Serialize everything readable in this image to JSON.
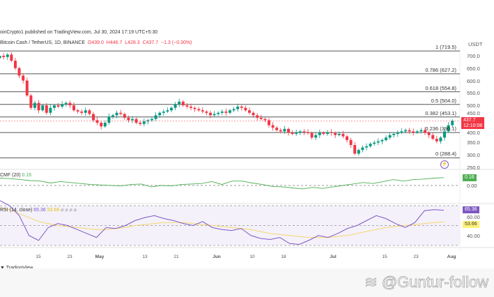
{
  "header": {
    "published": "oinCrypto1 published on TradingView.com, Jul 30, 2024 17:19 UTC+5:30",
    "symbol": "Bitcoin Cash / TetherUS, 1D, BINANCE",
    "open": "O439.0",
    "high": "H446.7",
    "low": "L428.3",
    "close": "C437.7",
    "change": "−1.3 (−0.30%)"
  },
  "price_axis": {
    "currency": "USDT",
    "ticks": [
      "700.0",
      "650.0",
      "600.0",
      "550.0",
      "500.0",
      "450.0",
      "400.0",
      "350.0",
      "300.0",
      "250.0"
    ],
    "last_price": "437.7",
    "countdown": "12:10:08"
  },
  "cmf": {
    "label": "CMF (20)",
    "value": "0.16",
    "zero": "0.00"
  },
  "rsi": {
    "label": "RSI (14, close)",
    "value": "65.36",
    "ma_value": "53.66",
    "tick_60": "60.00",
    "tick_40": "40.00"
  },
  "x_axis": [
    "15",
    "23",
    "May",
    "13",
    "21",
    "Jun",
    "10",
    "18",
    "Jul",
    "15",
    "23",
    "Aug"
  ],
  "footer": {
    "brand": "TradingView",
    "watermark": "@Guntur-follow"
  },
  "colors": {
    "up": "#089981",
    "down": "#f23645",
    "cmf": "#4caf50",
    "rsi": "#7e57c2",
    "rsi_ma": "#f5d76e"
  },
  "chart_data": {
    "type": "candlestick",
    "title": "Bitcoin Cash / TetherUS, 1D, BINANCE",
    "x_start": "2024-04-04",
    "x_end": "2024-07-30",
    "ylim": [
      250,
      720
    ],
    "closes": [
      690,
      700,
      695,
      705,
      680,
      650,
      620,
      600,
      540,
      490,
      510,
      480,
      500,
      470,
      490,
      500,
      495,
      505,
      510,
      500,
      480,
      475,
      470,
      480,
      465,
      440,
      430,
      415,
      430,
      455,
      460,
      470,
      465,
      450,
      440,
      445,
      430,
      425,
      435,
      440,
      445,
      460,
      470,
      475,
      480,
      490,
      505,
      515,
      500,
      495,
      490,
      485,
      480,
      475,
      470,
      460,
      465,
      470,
      475,
      470,
      480,
      485,
      495,
      490,
      480,
      470,
      460,
      450,
      445,
      440,
      420,
      410,
      400,
      395,
      405,
      390,
      385,
      390,
      395,
      392,
      388,
      370,
      380,
      390,
      385,
      392,
      388,
      380,
      385,
      375,
      360,
      340,
      305,
      320,
      330,
      335,
      345,
      350,
      355,
      360,
      370,
      380,
      385,
      390,
      395,
      400,
      395,
      390,
      395,
      400,
      390,
      380,
      365,
      355,
      370,
      395,
      420,
      437.7
    ],
    "fib_levels": [
      {
        "ratio": "1",
        "price": 719.5,
        "label": "1 (719.5)"
      },
      {
        "ratio": "0.786",
        "price": 627.2,
        "label": "0.786 (627.2)"
      },
      {
        "ratio": "0.618",
        "price": 554.8,
        "label": "0.618 (554.8)"
      },
      {
        "ratio": "0.5",
        "price": 504.0,
        "label": "0.5 (504.0)"
      },
      {
        "ratio": "0.382",
        "price": 453.1,
        "label": "0.382 (453.1)"
      },
      {
        "ratio": "0.236",
        "price": 390.1,
        "label": "0.236 (390.1)"
      },
      {
        "ratio": "0",
        "price": 288.4,
        "label": "0 (288.4)"
      }
    ],
    "cmf_series": [
      0.15,
      0.14,
      0.12,
      0.1,
      0.09,
      0.05,
      0.08,
      0.06,
      0.04,
      0.02,
      0.01,
      0.0,
      -0.01,
      0.02,
      0.03,
      -0.03,
      0.0,
      -0.01,
      0.02,
      0.03,
      0.04,
      0.08,
      0.02,
      0.09,
      0.09,
      0.05,
      0.02,
      -0.02,
      -0.03,
      -0.05,
      -0.07,
      -0.04,
      -0.06,
      -0.03,
      0.0,
      0.03,
      0.06,
      0.04,
      0.08,
      0.12,
      0.09,
      0.12,
      0.13,
      0.15,
      0.16
    ],
    "rsi_series": [
      75,
      70,
      60,
      40,
      35,
      48,
      52,
      50,
      46,
      42,
      38,
      48,
      47,
      50,
      55,
      58,
      60,
      57,
      55,
      52,
      50,
      54,
      48,
      46,
      45,
      47,
      40,
      37,
      36,
      38,
      32,
      31,
      35,
      40,
      38,
      42,
      47,
      50,
      55,
      60,
      57,
      52,
      48,
      53,
      65,
      66,
      65.36
    ],
    "rsi_ma_series": [
      68,
      66,
      62,
      58,
      54,
      52,
      50,
      49,
      48,
      47,
      46,
      46,
      47,
      48,
      50,
      51,
      52,
      53,
      53,
      53,
      52,
      51,
      50,
      49,
      48,
      47,
      46,
      44,
      42,
      41,
      40,
      39,
      38,
      38,
      38,
      39,
      40,
      42,
      44,
      46,
      48,
      49,
      50,
      51,
      52,
      53,
      53.66
    ]
  }
}
